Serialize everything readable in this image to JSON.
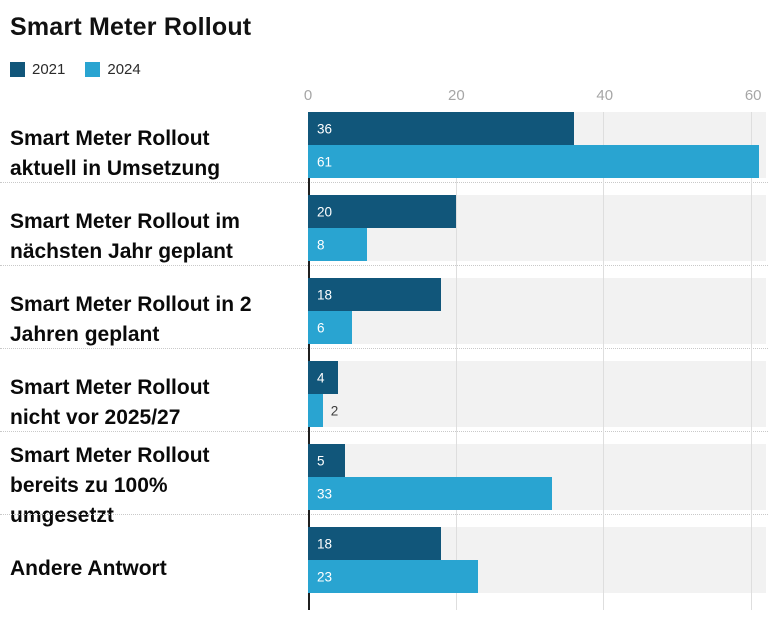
{
  "title": "Smart Meter Rollout",
  "legend": [
    {
      "label": "2021",
      "color": "#11567A"
    },
    {
      "label": "2024",
      "color": "#29A4D1"
    }
  ],
  "chart_data": {
    "type": "bar",
    "orientation": "horizontal",
    "title": "Smart Meter Rollout",
    "categories": [
      "Smart Meter Rollout\naktuell in Umsetzung",
      "Smart Meter Rollout im\nnächsten Jahr geplant",
      "Smart Meter Rollout in 2\nJahren geplant",
      "Smart Meter Rollout\nnicht vor 2025/27",
      "Smart Meter Rollout\nbereits zu 100%\numgesetzt",
      "Andere Antwort"
    ],
    "series": [
      {
        "name": "2021",
        "color": "#11567A",
        "values": [
          36,
          20,
          18,
          4,
          5,
          18
        ]
      },
      {
        "name": "2024",
        "color": "#29A4D1",
        "values": [
          61,
          8,
          6,
          2,
          33,
          23
        ]
      }
    ],
    "xlim": [
      0,
      62
    ],
    "ticks": [
      0,
      20,
      40,
      60
    ],
    "grid": true,
    "legend_position": "top-left",
    "xlabel": "",
    "ylabel": ""
  },
  "colors": {
    "plot_band": "#F2F2F2",
    "gridline": "#DEDEDE",
    "axis": "#1F1F1F",
    "tick_text": "#A6A6A6",
    "separator": "#C9C9C9",
    "value_inside": "#FFFFFF",
    "value_outside": "#3D3D3D"
  }
}
